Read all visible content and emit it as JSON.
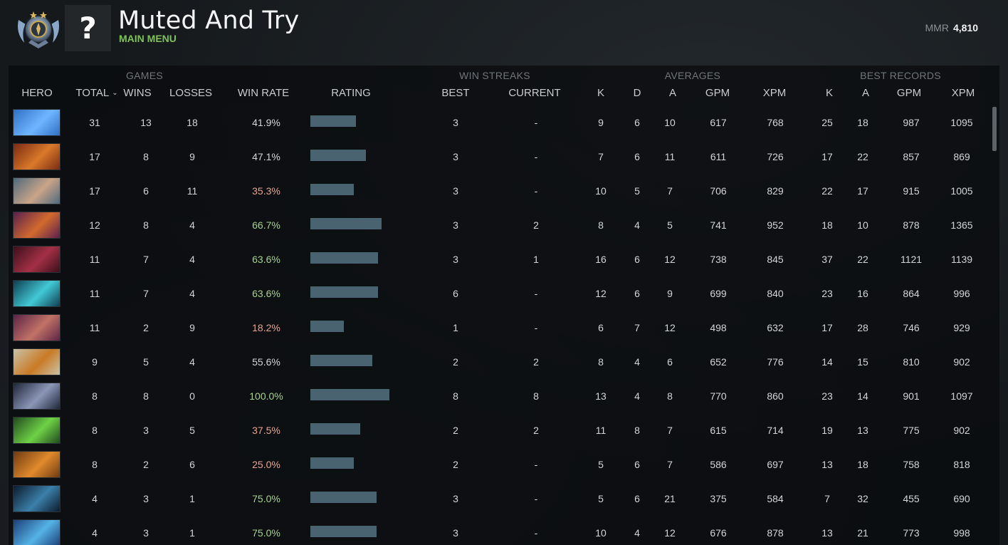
{
  "header": {
    "player_name": "Muted And Try",
    "nav_link": "MAIN MENU",
    "avatar_glyph": "?",
    "rank_medal_icon": "immortal-rank-medal-icon",
    "mmr_label": "MMR",
    "mmr_value": "4,810"
  },
  "colors": {
    "background": "#15191c",
    "accent_green": "#7fc25a",
    "winrate_high": "#a6d48d",
    "winrate_low": "#e7a48f",
    "winrate_neutral": "#d3d6d9",
    "rating_bar": "#496371"
  },
  "groups": {
    "games": "GAMES",
    "win_streaks": "WIN STREAKS",
    "averages": "AVERAGES",
    "best_records": "BEST RECORDS"
  },
  "columns": {
    "hero": "HERO",
    "total": "TOTAL",
    "wins": "WINS",
    "losses": "LOSSES",
    "win_rate": "WIN RATE",
    "rating": "RATING",
    "best": "BEST",
    "current": "CURRENT",
    "avg_k": "K",
    "avg_d": "D",
    "avg_a": "A",
    "avg_gpm": "GPM",
    "avg_xpm": "XPM",
    "best_k": "K",
    "best_a": "A",
    "best_gpm": "GPM",
    "best_xpm": "XPM"
  },
  "sort": {
    "column": "total",
    "direction": "descending",
    "indicator_icon": "chevron-down-icon"
  },
  "rows": [
    {
      "hero_colors": [
        "#2f6fc4",
        "#6fb6ff"
      ],
      "total": "31",
      "wins": "13",
      "losses": "18",
      "win_rate": "41.9%",
      "win_rate_tone": "neutral",
      "rating": 0.58,
      "best": "3",
      "current": "-",
      "k": "9",
      "d": "6",
      "a": "10",
      "gpm": "617",
      "xpm": "768",
      "best_k": "25",
      "best_a": "18",
      "best_gpm": "987",
      "best_xpm": "1095"
    },
    {
      "hero_colors": [
        "#7a2a12",
        "#d9792a"
      ],
      "total": "17",
      "wins": "8",
      "losses": "9",
      "win_rate": "47.1%",
      "win_rate_tone": "neutral",
      "rating": 0.7,
      "best": "3",
      "current": "-",
      "k": "7",
      "d": "6",
      "a": "11",
      "gpm": "611",
      "xpm": "726",
      "best_k": "17",
      "best_a": "22",
      "best_gpm": "857",
      "best_xpm": "869"
    },
    {
      "hero_colors": [
        "#4e6a7c",
        "#c9a488"
      ],
      "total": "17",
      "wins": "6",
      "losses": "11",
      "win_rate": "35.3%",
      "win_rate_tone": "low",
      "rating": 0.55,
      "best": "3",
      "current": "-",
      "k": "10",
      "d": "5",
      "a": "7",
      "gpm": "706",
      "xpm": "829",
      "best_k": "22",
      "best_a": "17",
      "best_gpm": "915",
      "best_xpm": "1005"
    },
    {
      "hero_colors": [
        "#5a1f4d",
        "#d26a2e"
      ],
      "total": "12",
      "wins": "8",
      "losses": "4",
      "win_rate": "66.7%",
      "win_rate_tone": "high",
      "rating": 0.9,
      "best": "3",
      "current": "2",
      "k": "8",
      "d": "4",
      "a": "5",
      "gpm": "741",
      "xpm": "952",
      "best_k": "18",
      "best_a": "10",
      "best_gpm": "878",
      "best_xpm": "1365"
    },
    {
      "hero_colors": [
        "#3b0f1a",
        "#a33046"
      ],
      "total": "11",
      "wins": "7",
      "losses": "4",
      "win_rate": "63.6%",
      "win_rate_tone": "high",
      "rating": 0.86,
      "best": "3",
      "current": "1",
      "k": "16",
      "d": "6",
      "a": "12",
      "gpm": "738",
      "xpm": "845",
      "best_k": "37",
      "best_a": "22",
      "best_gpm": "1121",
      "best_xpm": "1139"
    },
    {
      "hero_colors": [
        "#0d3f50",
        "#42c9d6"
      ],
      "total": "11",
      "wins": "7",
      "losses": "4",
      "win_rate": "63.6%",
      "win_rate_tone": "high",
      "rating": 0.86,
      "best": "6",
      "current": "-",
      "k": "12",
      "d": "6",
      "a": "9",
      "gpm": "699",
      "xpm": "840",
      "best_k": "23",
      "best_a": "16",
      "best_gpm": "864",
      "best_xpm": "996"
    },
    {
      "hero_colors": [
        "#5c2346",
        "#c27266"
      ],
      "total": "11",
      "wins": "2",
      "losses": "9",
      "win_rate": "18.2%",
      "win_rate_tone": "low",
      "rating": 0.42,
      "best": "1",
      "current": "-",
      "k": "6",
      "d": "7",
      "a": "12",
      "gpm": "498",
      "xpm": "632",
      "best_k": "17",
      "best_a": "28",
      "best_gpm": "746",
      "best_xpm": "929"
    },
    {
      "hero_colors": [
        "#c9c3a8",
        "#c97a24"
      ],
      "total": "9",
      "wins": "5",
      "losses": "4",
      "win_rate": "55.6%",
      "win_rate_tone": "neutral",
      "rating": 0.78,
      "best": "2",
      "current": "2",
      "k": "8",
      "d": "4",
      "a": "6",
      "gpm": "652",
      "xpm": "776",
      "best_k": "14",
      "best_a": "15",
      "best_gpm": "810",
      "best_xpm": "902"
    },
    {
      "hero_colors": [
        "#1e2638",
        "#8c97b8"
      ],
      "total": "8",
      "wins": "8",
      "losses": "0",
      "win_rate": "100.0%",
      "win_rate_tone": "high",
      "rating": 1.0,
      "best": "8",
      "current": "8",
      "k": "13",
      "d": "4",
      "a": "8",
      "gpm": "770",
      "xpm": "860",
      "best_k": "23",
      "best_a": "14",
      "best_gpm": "901",
      "best_xpm": "1097"
    },
    {
      "hero_colors": [
        "#1f4a1d",
        "#6fd146"
      ],
      "total": "8",
      "wins": "3",
      "losses": "5",
      "win_rate": "37.5%",
      "win_rate_tone": "low",
      "rating": 0.63,
      "best": "2",
      "current": "2",
      "k": "11",
      "d": "8",
      "a": "7",
      "gpm": "615",
      "xpm": "714",
      "best_k": "19",
      "best_a": "13",
      "best_gpm": "775",
      "best_xpm": "902"
    },
    {
      "hero_colors": [
        "#6e3a12",
        "#e08a2c"
      ],
      "total": "8",
      "wins": "2",
      "losses": "6",
      "win_rate": "25.0%",
      "win_rate_tone": "low",
      "rating": 0.55,
      "best": "2",
      "current": "-",
      "k": "5",
      "d": "6",
      "a": "7",
      "gpm": "586",
      "xpm": "697",
      "best_k": "13",
      "best_a": "18",
      "best_gpm": "758",
      "best_xpm": "818"
    },
    {
      "hero_colors": [
        "#0b1b2d",
        "#3b7fa8"
      ],
      "total": "4",
      "wins": "3",
      "losses": "1",
      "win_rate": "75.0%",
      "win_rate_tone": "high",
      "rating": 0.84,
      "best": "3",
      "current": "-",
      "k": "5",
      "d": "6",
      "a": "21",
      "gpm": "375",
      "xpm": "584",
      "best_k": "7",
      "best_a": "32",
      "best_gpm": "455",
      "best_xpm": "690"
    },
    {
      "hero_colors": [
        "#1b3f7a",
        "#55b3e6"
      ],
      "total": "4",
      "wins": "3",
      "losses": "1",
      "win_rate": "75.0%",
      "win_rate_tone": "high",
      "rating": 0.84,
      "best": "3",
      "current": "-",
      "k": "10",
      "d": "4",
      "a": "12",
      "gpm": "676",
      "xpm": "878",
      "best_k": "13",
      "best_a": "21",
      "best_gpm": "773",
      "best_xpm": "998"
    }
  ]
}
